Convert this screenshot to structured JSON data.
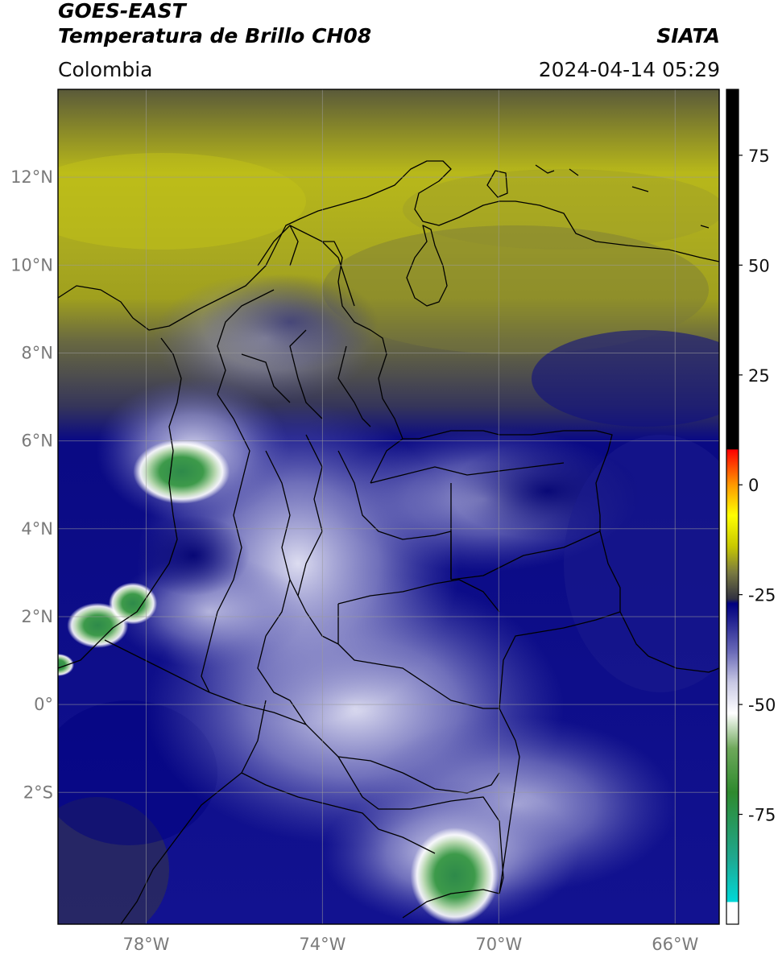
{
  "header": {
    "satellite": "GOES-EAST",
    "product": "Temperatura de Brillo CH08",
    "agency": "SIATA",
    "region": "Colombia",
    "timestamp": "2024-04-14 05:29"
  },
  "map": {
    "extent": {
      "lon_min": -80.0,
      "lon_max": -65.0,
      "lat_min": -5.0,
      "lat_max": 14.0
    },
    "lat_ticks": [
      {
        "value": 12,
        "label": "12°N"
      },
      {
        "value": 10,
        "label": "10°N"
      },
      {
        "value": 8,
        "label": "8°N"
      },
      {
        "value": 6,
        "label": "6°N"
      },
      {
        "value": 4,
        "label": "4°N"
      },
      {
        "value": 2,
        "label": "2°N"
      },
      {
        "value": 0,
        "label": "0°"
      },
      {
        "value": -2,
        "label": "2°S"
      }
    ],
    "lon_ticks": [
      {
        "value": -78,
        "label": "78°W"
      },
      {
        "value": -74,
        "label": "74°W"
      },
      {
        "value": -70,
        "label": "70°W"
      },
      {
        "value": -66,
        "label": "66°W"
      }
    ],
    "cold_cloud_cores": [
      {
        "lon": -77.2,
        "lat": 5.3,
        "intensity": "cold"
      },
      {
        "lon": -79.1,
        "lat": 1.8,
        "intensity": "cold"
      },
      {
        "lon": -78.3,
        "lat": 2.3,
        "intensity": "cold"
      },
      {
        "lon": -71.0,
        "lat": -3.9,
        "intensity": "cold"
      },
      {
        "lon": -80.0,
        "lat": 0.9,
        "intensity": "cold"
      }
    ]
  },
  "colorbar": {
    "range": [
      -100,
      90
    ],
    "ticks": [
      {
        "value": 75,
        "label": "75"
      },
      {
        "value": 50,
        "label": "50"
      },
      {
        "value": 25,
        "label": "25"
      },
      {
        "value": 0,
        "label": "0"
      },
      {
        "value": -25,
        "label": "-25"
      },
      {
        "value": -50,
        "label": "-50"
      },
      {
        "value": -75,
        "label": "-75"
      }
    ],
    "stops": [
      {
        "value": -100,
        "color": "#ffffff"
      },
      {
        "value": -95,
        "color": "#ffffff"
      },
      {
        "value": -94.9,
        "color": "#00d8d8"
      },
      {
        "value": -85,
        "color": "#1fa890"
      },
      {
        "value": -70,
        "color": "#2e8a2e"
      },
      {
        "value": -60,
        "color": "#6ea85a"
      },
      {
        "value": -52,
        "color": "#ffffff"
      },
      {
        "value": -45,
        "color": "#c8c8e4"
      },
      {
        "value": -38,
        "color": "#6a6ab8"
      },
      {
        "value": -30,
        "color": "#1a1a8c"
      },
      {
        "value": -27,
        "color": "#000080"
      },
      {
        "value": -26,
        "color": "#303040"
      },
      {
        "value": -20,
        "color": "#7a7a40"
      },
      {
        "value": -14,
        "color": "#c8c800"
      },
      {
        "value": -7,
        "color": "#ffff00"
      },
      {
        "value": 0,
        "color": "#ff9900"
      },
      {
        "value": 8,
        "color": "#ff0000"
      },
      {
        "value": 8.1,
        "color": "#000000"
      },
      {
        "value": 90,
        "color": "#000000"
      }
    ]
  }
}
